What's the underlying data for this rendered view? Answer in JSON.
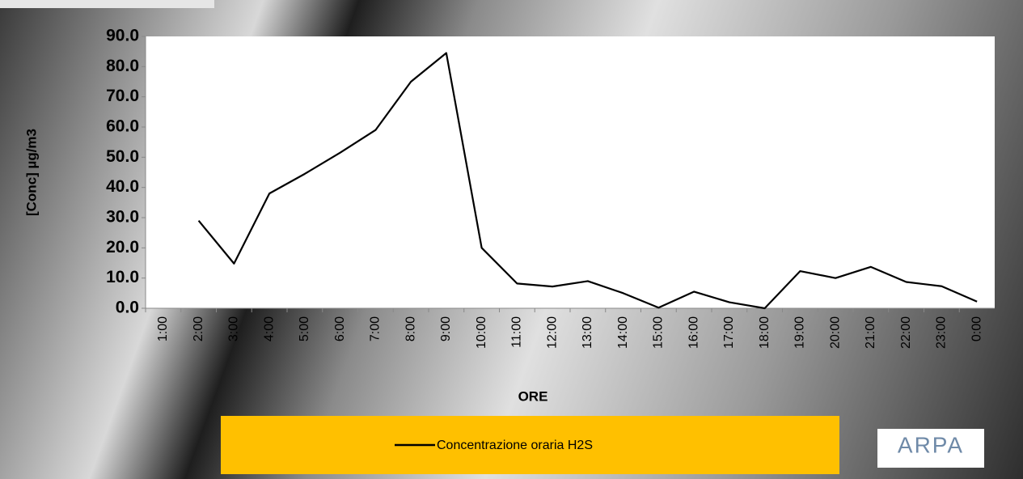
{
  "chart_data": {
    "type": "line",
    "y_label": "[Conc] µg/m3",
    "x_label": "ORE",
    "categories": [
      "1:00",
      "2:00",
      "3:00",
      "4:00",
      "5:00",
      "6:00",
      "7:00",
      "8:00",
      "9:00",
      "10:00",
      "11:00",
      "12:00",
      "13:00",
      "14:00",
      "15:00",
      "16:00",
      "17:00",
      "18:00",
      "19:00",
      "20:00",
      "21:00",
      "22:00",
      "23:00",
      "0:00"
    ],
    "series": [
      {
        "name": "Concentrazione oraria H2S",
        "color": "#000000",
        "values": [
          null,
          29,
          14.8,
          38,
          44.5,
          51.5,
          59,
          75,
          84.5,
          20,
          8.2,
          7.2,
          9,
          5,
          0.2,
          5.5,
          2,
          0,
          12.3,
          10,
          13.7,
          8.7,
          7.3,
          2.2
        ]
      }
    ],
    "ylim": [
      0,
      90
    ],
    "yticks": [
      {
        "value": 0,
        "label": "0.0"
      },
      {
        "value": 10,
        "label": "10.0"
      },
      {
        "value": 20,
        "label": "20.0"
      },
      {
        "value": 30,
        "label": "30.0"
      },
      {
        "value": 40,
        "label": "40.0"
      },
      {
        "value": 50,
        "label": "50.0"
      },
      {
        "value": 60,
        "label": "60.0"
      },
      {
        "value": 70,
        "label": "70.0"
      },
      {
        "value": 80,
        "label": "80.0"
      },
      {
        "value": 90,
        "label": "90.0"
      }
    ],
    "legend_position": "bottom",
    "legend_color": "#ffc000",
    "logo": "ARPA"
  }
}
